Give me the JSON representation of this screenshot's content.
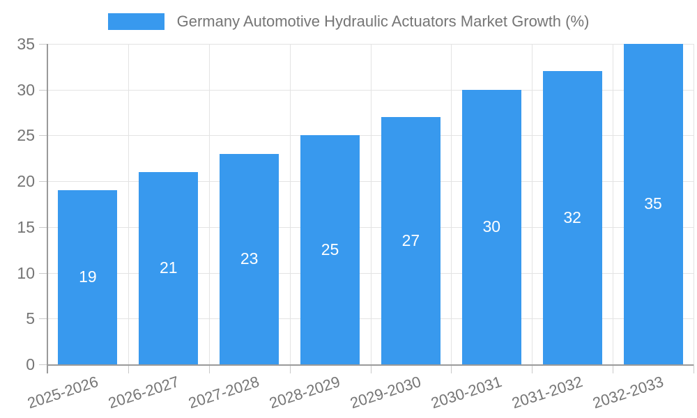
{
  "colors": {
    "bar": "#3899ee",
    "bar_value_text": "#ffffff",
    "grid_line": "#e3e3e3",
    "axis_line": "#9a9a9a",
    "tick_line": "#c9c9c9",
    "axis_text": "#757575",
    "legend_text": "#757575",
    "background": "#ffffff"
  },
  "chart_data": {
    "type": "bar",
    "title": "Germany Automotive Hydraulic Actuators Market Growth (%)",
    "categories": [
      "2025-2026",
      "2026-2027",
      "2027-2028",
      "2028-2029",
      "2029-2030",
      "2030-2031",
      "2031-2032",
      "2032-2033"
    ],
    "values": [
      19,
      21,
      23,
      25,
      27,
      30,
      32,
      35
    ],
    "value_labels": [
      "19",
      "21",
      "23",
      "25",
      "27",
      "30",
      "32",
      "35"
    ],
    "xlabel": "",
    "ylabel": "",
    "ylim": [
      0,
      35
    ],
    "yticks": [
      0,
      5,
      10,
      15,
      20,
      25,
      30,
      35
    ],
    "ytick_labels": [
      "0",
      "5",
      "10",
      "15",
      "20",
      "25",
      "30",
      "35"
    ],
    "grid": true,
    "legend_position": "top",
    "series": [
      {
        "name": "Germany Automotive Hydraulic Actuators Market Growth (%)",
        "values": [
          19,
          21,
          23,
          25,
          27,
          30,
          32,
          35
        ]
      }
    ]
  }
}
